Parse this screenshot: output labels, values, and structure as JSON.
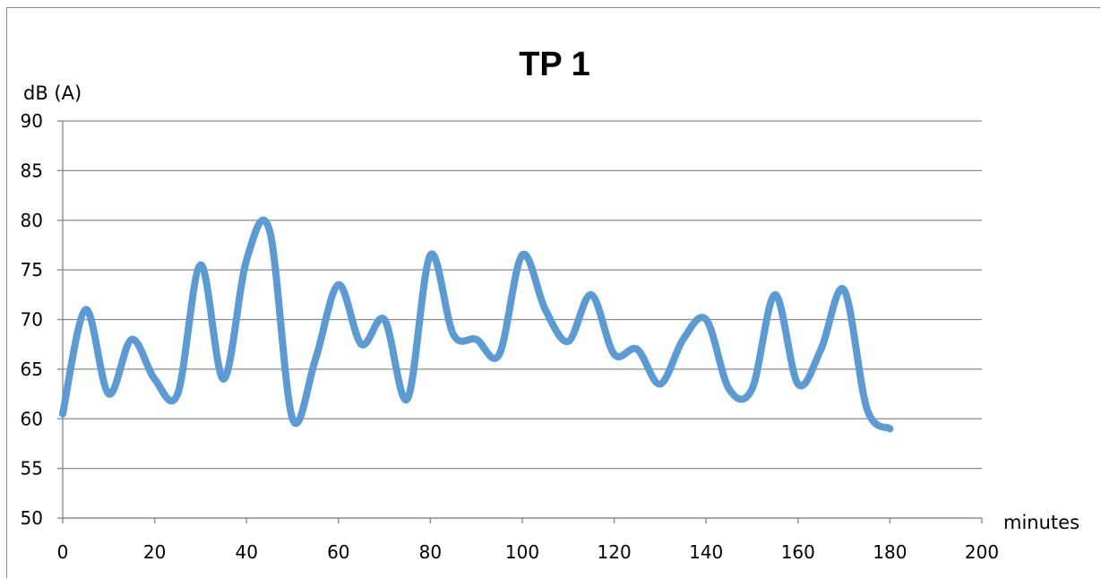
{
  "chart_data": {
    "type": "line",
    "title": "TP 1",
    "xlabel": "minutes",
    "ylabel": "dB (A)",
    "xlim": [
      0,
      200
    ],
    "ylim": [
      50,
      90
    ],
    "x_ticks": [
      "0",
      "20",
      "40",
      "60",
      "80",
      "100",
      "120",
      "140",
      "160",
      "180",
      "200"
    ],
    "y_ticks": [
      "50",
      "55",
      "60",
      "65",
      "70",
      "75",
      "80",
      "85",
      "90"
    ],
    "grid": true,
    "legend": "none",
    "series_color": "#5b9bd5",
    "series": [
      {
        "x": [
          0,
          5,
          10,
          15,
          20,
          25,
          30,
          35,
          40,
          45,
          50,
          55,
          60,
          65,
          70,
          75,
          80,
          85,
          90,
          95,
          100,
          105,
          110,
          115,
          120,
          125,
          130,
          135,
          140,
          145,
          150,
          155,
          160,
          165,
          170,
          175,
          180
        ],
        "values": [
          60.5,
          71,
          62.5,
          68,
          64,
          62.5,
          75.5,
          64,
          76,
          79,
          60,
          66,
          73.5,
          67.5,
          70,
          62,
          76.5,
          68.5,
          68,
          66.5,
          76.5,
          71,
          67.8,
          72.5,
          66.5,
          67,
          63.5,
          68,
          70,
          63,
          63,
          72.5,
          63.5,
          67,
          73,
          61,
          59
        ]
      }
    ]
  }
}
